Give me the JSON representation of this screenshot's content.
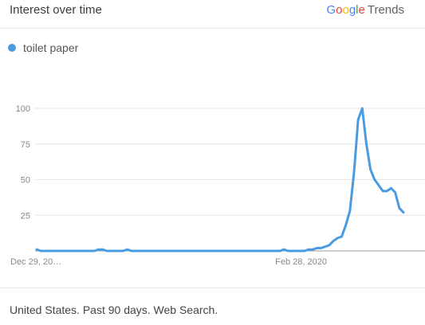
{
  "header": {
    "title": "Interest over time",
    "brand_google": [
      "G",
      "o",
      "o",
      "g",
      "l",
      "e"
    ],
    "brand_trends": "Trends"
  },
  "footer": {
    "text": "United States. Past 90 days. Web Search."
  },
  "colors": {
    "series": "#4a9be0",
    "grid": "#e6e6e6",
    "baseline": "#999999"
  },
  "chart_data": {
    "type": "line",
    "title": "",
    "xlabel": "",
    "ylabel": "",
    "ylim": [
      0,
      100
    ],
    "yticks": [
      100,
      75,
      50,
      25
    ],
    "xtick_labels": [
      "Dec 29, 20…",
      "Feb 28, 2020"
    ],
    "xtick_indices": [
      0,
      60
    ],
    "grid": true,
    "legend_position": "top-left",
    "series": [
      {
        "name": "toilet paper",
        "values": [
          1,
          0,
          0,
          0,
          0,
          0,
          0,
          0,
          0,
          0,
          0,
          0,
          0,
          0,
          0,
          1,
          1,
          0,
          0,
          0,
          0,
          0,
          1,
          0,
          0,
          0,
          0,
          0,
          0,
          0,
          0,
          0,
          0,
          0,
          0,
          0,
          0,
          0,
          0,
          0,
          0,
          0,
          0,
          0,
          0,
          0,
          0,
          0,
          0,
          0,
          0,
          0,
          0,
          0,
          0,
          0,
          0,
          0,
          0,
          0,
          1,
          0,
          0,
          0,
          0,
          0,
          1,
          1,
          2,
          2,
          3,
          4,
          7,
          9,
          10,
          18,
          28,
          55,
          92,
          100,
          75,
          57,
          50,
          46,
          42,
          42,
          44,
          41,
          30,
          27
        ]
      }
    ]
  }
}
